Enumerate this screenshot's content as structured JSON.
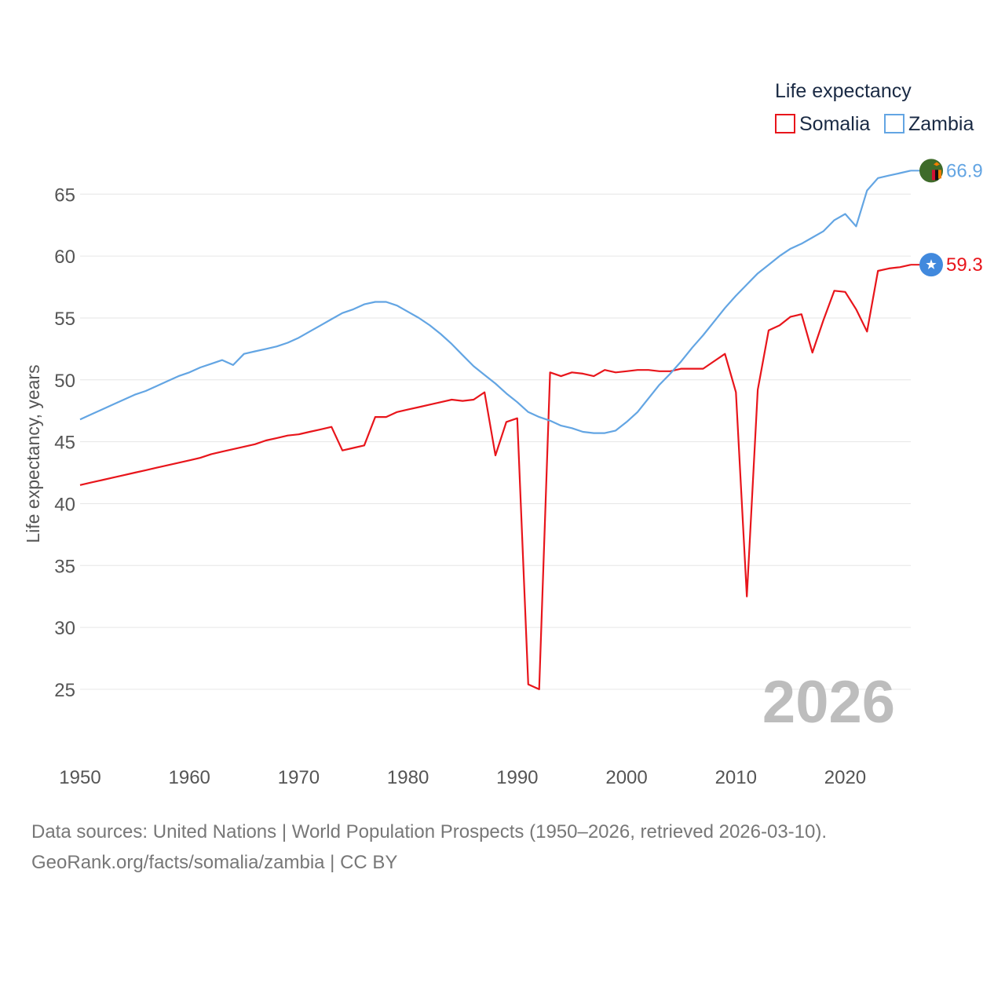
{
  "chart_data": {
    "type": "line",
    "legend_title": "Life expectancy",
    "ylabel": "Life expectancy, years",
    "xlabel": "",
    "xlim": [
      1950,
      2026
    ],
    "ylim": [
      21,
      68
    ],
    "x_ticks": [
      1950,
      1960,
      1970,
      1980,
      1990,
      2000,
      2010,
      2020
    ],
    "y_ticks": [
      25,
      30,
      35,
      40,
      45,
      50,
      55,
      60,
      65
    ],
    "year_watermark": "2026",
    "legend_position": "top-right",
    "grid": true,
    "series": [
      {
        "name": "Somalia",
        "color": "#e8151b",
        "end_label": "59.3",
        "flag_icon": "somalia-flag-icon",
        "points": [
          [
            1950,
            41.5
          ],
          [
            1951,
            41.7
          ],
          [
            1952,
            41.9
          ],
          [
            1953,
            42.1
          ],
          [
            1954,
            42.3
          ],
          [
            1955,
            42.5
          ],
          [
            1956,
            42.7
          ],
          [
            1957,
            42.9
          ],
          [
            1958,
            43.1
          ],
          [
            1959,
            43.3
          ],
          [
            1960,
            43.5
          ],
          [
            1961,
            43.7
          ],
          [
            1962,
            44.0
          ],
          [
            1963,
            44.2
          ],
          [
            1964,
            44.4
          ],
          [
            1965,
            44.6
          ],
          [
            1966,
            44.8
          ],
          [
            1967,
            45.1
          ],
          [
            1968,
            45.3
          ],
          [
            1969,
            45.5
          ],
          [
            1970,
            45.6
          ],
          [
            1971,
            45.8
          ],
          [
            1972,
            46.0
          ],
          [
            1973,
            46.2
          ],
          [
            1974,
            44.3
          ],
          [
            1975,
            44.5
          ],
          [
            1976,
            44.7
          ],
          [
            1977,
            47.0
          ],
          [
            1978,
            47.0
          ],
          [
            1979,
            47.4
          ],
          [
            1980,
            47.6
          ],
          [
            1981,
            47.8
          ],
          [
            1982,
            48.0
          ],
          [
            1983,
            48.2
          ],
          [
            1984,
            48.4
          ],
          [
            1985,
            48.3
          ],
          [
            1986,
            48.4
          ],
          [
            1987,
            49.0
          ],
          [
            1988,
            43.9
          ],
          [
            1989,
            46.6
          ],
          [
            1990,
            46.9
          ],
          [
            1991,
            25.4
          ],
          [
            1992,
            25.0
          ],
          [
            1993,
            50.6
          ],
          [
            1994,
            50.3
          ],
          [
            1995,
            50.6
          ],
          [
            1996,
            50.5
          ],
          [
            1997,
            50.3
          ],
          [
            1998,
            50.8
          ],
          [
            1999,
            50.6
          ],
          [
            2000,
            50.7
          ],
          [
            2001,
            50.8
          ],
          [
            2002,
            50.8
          ],
          [
            2003,
            50.7
          ],
          [
            2004,
            50.7
          ],
          [
            2005,
            50.9
          ],
          [
            2006,
            50.9
          ],
          [
            2007,
            50.9
          ],
          [
            2008,
            51.5
          ],
          [
            2009,
            52.1
          ],
          [
            2010,
            49.0
          ],
          [
            2011,
            32.5
          ],
          [
            2012,
            49.2
          ],
          [
            2013,
            54.0
          ],
          [
            2014,
            54.4
          ],
          [
            2015,
            55.1
          ],
          [
            2016,
            55.3
          ],
          [
            2017,
            52.2
          ],
          [
            2018,
            54.8
          ],
          [
            2019,
            57.2
          ],
          [
            2020,
            57.1
          ],
          [
            2021,
            55.7
          ],
          [
            2022,
            53.9
          ],
          [
            2023,
            58.8
          ],
          [
            2024,
            59.0
          ],
          [
            2025,
            59.1
          ],
          [
            2026,
            59.3
          ]
        ]
      },
      {
        "name": "Zambia",
        "color": "#63a5e3",
        "end_label": "66.9",
        "flag_icon": "zambia-flag-icon",
        "points": [
          [
            1950,
            46.8
          ],
          [
            1951,
            47.2
          ],
          [
            1952,
            47.6
          ],
          [
            1953,
            48.0
          ],
          [
            1954,
            48.4
          ],
          [
            1955,
            48.8
          ],
          [
            1956,
            49.1
          ],
          [
            1957,
            49.5
          ],
          [
            1958,
            49.9
          ],
          [
            1959,
            50.3
          ],
          [
            1960,
            50.6
          ],
          [
            1961,
            51.0
          ],
          [
            1962,
            51.3
          ],
          [
            1963,
            51.6
          ],
          [
            1964,
            51.2
          ],
          [
            1965,
            52.1
          ],
          [
            1966,
            52.3
          ],
          [
            1967,
            52.5
          ],
          [
            1968,
            52.7
          ],
          [
            1969,
            53.0
          ],
          [
            1970,
            53.4
          ],
          [
            1971,
            53.9
          ],
          [
            1972,
            54.4
          ],
          [
            1973,
            54.9
          ],
          [
            1974,
            55.4
          ],
          [
            1975,
            55.7
          ],
          [
            1976,
            56.1
          ],
          [
            1977,
            56.3
          ],
          [
            1978,
            56.3
          ],
          [
            1979,
            56.0
          ],
          [
            1980,
            55.5
          ],
          [
            1981,
            55.0
          ],
          [
            1982,
            54.4
          ],
          [
            1983,
            53.7
          ],
          [
            1984,
            52.9
          ],
          [
            1985,
            52.0
          ],
          [
            1986,
            51.1
          ],
          [
            1987,
            50.4
          ],
          [
            1988,
            49.7
          ],
          [
            1989,
            48.9
          ],
          [
            1990,
            48.2
          ],
          [
            1991,
            47.4
          ],
          [
            1992,
            47.0
          ],
          [
            1993,
            46.7
          ],
          [
            1994,
            46.3
          ],
          [
            1995,
            46.1
          ],
          [
            1996,
            45.8
          ],
          [
            1997,
            45.7
          ],
          [
            1998,
            45.7
          ],
          [
            1999,
            45.9
          ],
          [
            2000,
            46.6
          ],
          [
            2001,
            47.4
          ],
          [
            2002,
            48.5
          ],
          [
            2003,
            49.6
          ],
          [
            2004,
            50.5
          ],
          [
            2005,
            51.5
          ],
          [
            2006,
            52.6
          ],
          [
            2007,
            53.6
          ],
          [
            2008,
            54.7
          ],
          [
            2009,
            55.8
          ],
          [
            2010,
            56.8
          ],
          [
            2011,
            57.7
          ],
          [
            2012,
            58.6
          ],
          [
            2013,
            59.3
          ],
          [
            2014,
            60.0
          ],
          [
            2015,
            60.6
          ],
          [
            2016,
            61.0
          ],
          [
            2017,
            61.5
          ],
          [
            2018,
            62.0
          ],
          [
            2019,
            62.9
          ],
          [
            2020,
            63.4
          ],
          [
            2021,
            62.4
          ],
          [
            2022,
            65.3
          ],
          [
            2023,
            66.3
          ],
          [
            2024,
            66.5
          ],
          [
            2025,
            66.7
          ],
          [
            2026,
            66.9
          ]
        ]
      }
    ]
  },
  "footer": {
    "line1": "Data sources: United Nations | World Population Prospects (1950–2026, retrieved 2026-03-10).",
    "line2": "GeoRank.org/facts/somalia/zambia | CC BY"
  }
}
